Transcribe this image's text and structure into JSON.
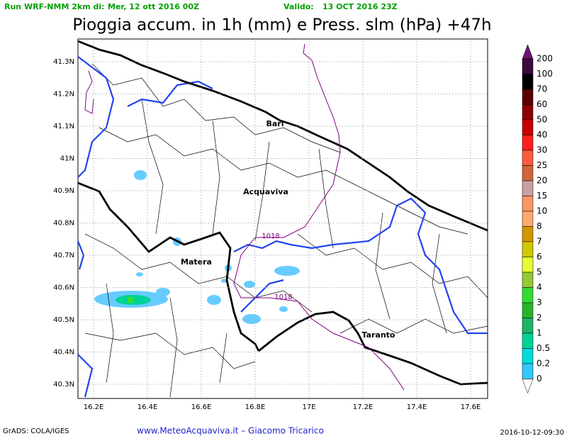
{
  "header": {
    "run_label": "Run WRF-NMM 2km di:",
    "run_date": "Mer, 12 ott 2016 00Z",
    "valid_label": "Valido:",
    "valid_date": "13 OCT 2016 23Z",
    "title": "Pioggia accum. in 1h (mm) e Press. slm (hPa) +47h"
  },
  "map": {
    "lat_ticks": [
      {
        "value": 41.3,
        "label": "41.3N"
      },
      {
        "value": 41.2,
        "label": "41.2N"
      },
      {
        "value": 41.1,
        "label": "41.1N"
      },
      {
        "value": 41,
        "label": "41N"
      },
      {
        "value": 40.9,
        "label": "40.9N"
      },
      {
        "value": 40.8,
        "label": "40.8N"
      },
      {
        "value": 40.7,
        "label": "40.7N"
      },
      {
        "value": 40.6,
        "label": "40.6N"
      },
      {
        "value": 40.5,
        "label": "40.5N"
      },
      {
        "value": 40.4,
        "label": "40.4N"
      },
      {
        "value": 40.3,
        "label": "40.3N"
      }
    ],
    "lon_ticks": [
      {
        "value": 16.2,
        "label": "16.2E"
      },
      {
        "value": 16.4,
        "label": "16.4E"
      },
      {
        "value": 16.6,
        "label": "16.6E"
      },
      {
        "value": 16.8,
        "label": "16.8E"
      },
      {
        "value": 17,
        "label": "17E"
      },
      {
        "value": 17.2,
        "label": "17.2E"
      },
      {
        "value": 17.4,
        "label": "17.4E"
      },
      {
        "value": 17.6,
        "label": "17.6E"
      }
    ],
    "cities": [
      "Bari",
      "Acquaviva",
      "Matera",
      "Taranto"
    ],
    "isobars": [
      "1018",
      "1018"
    ]
  },
  "colorbar": {
    "labels": [
      "200",
      "100",
      "70",
      "60",
      "50",
      "40",
      "30",
      "25",
      "20",
      "15",
      "10",
      "8",
      "7",
      "6",
      "5",
      "4",
      "3",
      "2",
      "1",
      "0.5",
      "0.2",
      "0"
    ],
    "colors": [
      "#6e1470",
      "#3c0a3c",
      "#000000",
      "#5a0000",
      "#8c0000",
      "#c80000",
      "#ff1e1e",
      "#ff5a3c",
      "#d2643c",
      "#c8a0a0",
      "#ff9664",
      "#ffaa6e",
      "#d29600",
      "#d2c800",
      "#e6ff32",
      "#96c832",
      "#32dc32",
      "#28b428",
      "#1eb464",
      "#00d296",
      "#00dcdc",
      "#32c8ff",
      "#ffffff"
    ]
  },
  "footer": {
    "left": "GrADS: COLA/IGES",
    "center": "www.MeteoAcquaviva.it – Giacomo Tricarico",
    "right": "2016-10-12-09:30"
  }
}
